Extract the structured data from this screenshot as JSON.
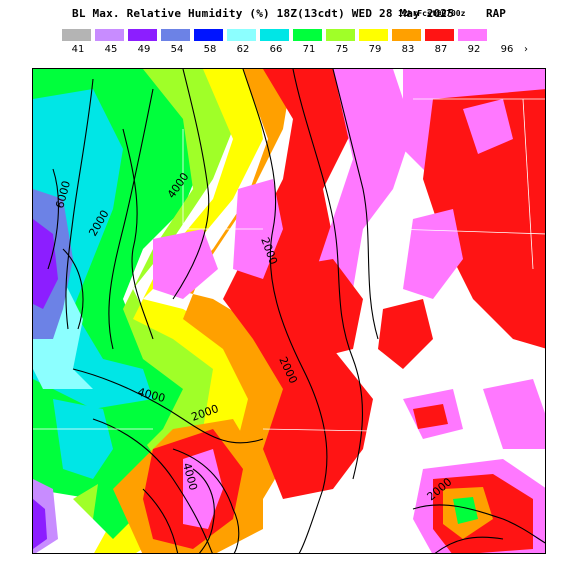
{
  "title": {
    "main": "BL Max. Relative Humidity (%) 18Z(13cdt) WED 28 May 2025",
    "forecast": "12hrFcst@0700z",
    "model": "RAP"
  },
  "legend": {
    "bins": [
      {
        "label": "41",
        "color": "#b4b4b4"
      },
      {
        "label": "45",
        "color": "#c88cff"
      },
      {
        "label": "49",
        "color": "#8c1eff"
      },
      {
        "label": "54",
        "color": "#6c82e6"
      },
      {
        "label": "58",
        "color": "#0014ff"
      },
      {
        "label": "62",
        "color": "#8cffff"
      },
      {
        "label": "66",
        "color": "#00e6e6"
      },
      {
        "label": "71",
        "color": "#00ff3c"
      },
      {
        "label": "75",
        "color": "#a0ff28"
      },
      {
        "label": "79",
        "color": "#ffff00"
      },
      {
        "label": "83",
        "color": "#ffa000"
      },
      {
        "label": "87",
        "color": "#ff1414"
      },
      {
        "label": "92",
        "color": "#ff78ff"
      },
      {
        "label": "96",
        "color": ""
      }
    ],
    "more_glyph": "›"
  },
  "map": {
    "contour_labels": [
      "6000",
      "2000",
      "4000",
      "2000",
      "2000",
      "2000",
      "4000",
      "2000",
      "4000"
    ]
  }
}
